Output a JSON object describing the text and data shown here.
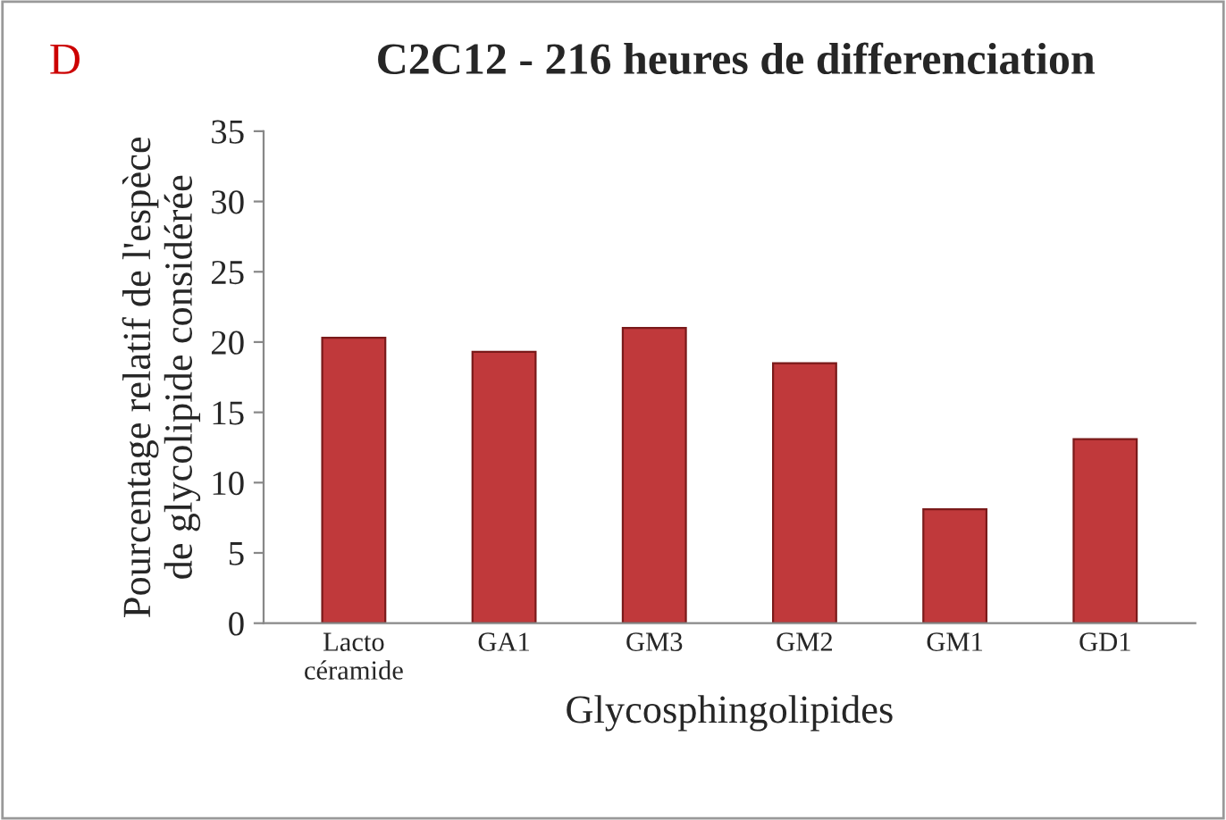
{
  "chart_data": {
    "type": "bar",
    "title": "C2C12 - 216 heures de differenciation",
    "xlabel": "Glycosphingolipides",
    "ylabel": "Pourcentage relatif de l'espèce\nde glycolipide considérée",
    "categories": [
      "Lacto\ncéramide",
      "GA1",
      "GM3",
      "GM2",
      "GM1",
      "GD1"
    ],
    "values": [
      20.3,
      19.3,
      21.0,
      18.5,
      8.1,
      13.1
    ],
    "color": "#c0393b",
    "ylim": [
      0,
      35
    ],
    "yticks": [
      0,
      5,
      10,
      15,
      20,
      25,
      30,
      35
    ],
    "grid": false,
    "annotations": [
      "D"
    ]
  }
}
